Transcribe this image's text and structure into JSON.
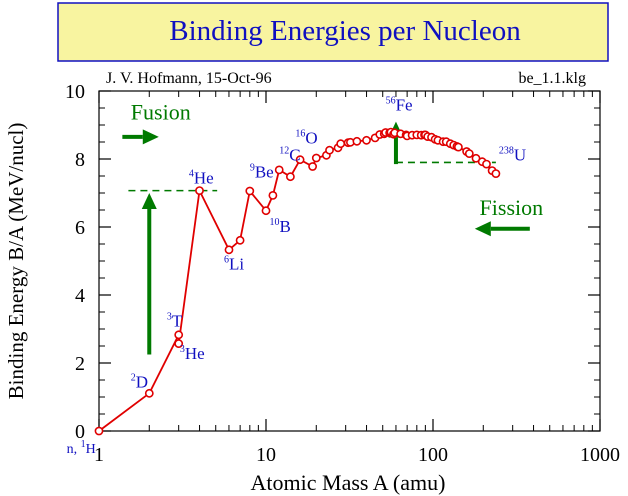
{
  "chart_data": {
    "type": "line",
    "title": "Binding Energies per Nucleon",
    "author_line": "J. V. Hofmann, 15-Oct-96",
    "file_label": "be_1.1.klg",
    "xlabel": "Atomic Mass A (amu)",
    "ylabel": "Binding Energy B/A (MeV/nucl)",
    "xscale": "log",
    "xlim": [
      1,
      1000
    ],
    "ylim": [
      0,
      10
    ],
    "x_ticks": [
      "1",
      "10",
      "100",
      "1000"
    ],
    "y_ticks": [
      "0",
      "2",
      "4",
      "6",
      "8",
      "10"
    ],
    "grid": false,
    "colors": {
      "title_box": "#f8f4a0",
      "title_text": "#1010c0",
      "series": "#e00000",
      "arrows": "#007a00",
      "labels": "#1010c0",
      "text": "#000000"
    },
    "series": [
      {
        "x": [
          1,
          2,
          3,
          3,
          4,
          6,
          7,
          8,
          10,
          11,
          12,
          14,
          16,
          19,
          20,
          23,
          24,
          27,
          28,
          31,
          32,
          35,
          40,
          45,
          48,
          51,
          52,
          55,
          56,
          58,
          59,
          64,
          69,
          70,
          75,
          80,
          85,
          89,
          90,
          93,
          98,
          103,
          107,
          115,
          120,
          127,
          133,
          139,
          142,
          159,
          165,
          181,
          197,
          209,
          226,
          238
        ],
        "values": [
          0.0,
          1.11,
          2.83,
          2.57,
          7.07,
          5.33,
          5.61,
          7.06,
          6.48,
          6.93,
          7.68,
          7.48,
          7.98,
          7.78,
          8.03,
          8.11,
          8.26,
          8.33,
          8.45,
          8.48,
          8.49,
          8.52,
          8.55,
          8.62,
          8.72,
          8.74,
          8.78,
          8.77,
          8.79,
          8.73,
          8.77,
          8.74,
          8.71,
          8.68,
          8.7,
          8.71,
          8.7,
          8.71,
          8.71,
          8.66,
          8.64,
          8.58,
          8.55,
          8.51,
          8.51,
          8.45,
          8.41,
          8.37,
          8.35,
          8.22,
          8.16,
          8.02,
          7.92,
          7.85,
          7.66,
          7.57
        ]
      }
    ],
    "nuclide_labels": [
      {
        "sup": "",
        "name": "n, ",
        "sup2": "1",
        "name2": "H"
      },
      {
        "sup": "2",
        "name": "D"
      },
      {
        "sup": "3",
        "name": "T"
      },
      {
        "sup": "3",
        "name": "He"
      },
      {
        "sup": "4",
        "name": "He"
      },
      {
        "sup": "6",
        "name": "Li"
      },
      {
        "sup": "9",
        "name": "Be"
      },
      {
        "sup": "10",
        "name": "B"
      },
      {
        "sup": "12",
        "name": "C"
      },
      {
        "sup": "16",
        "name": "O"
      },
      {
        "sup": "56",
        "name": "Fe"
      },
      {
        "sup": "238",
        "name": "U"
      }
    ],
    "annotations": {
      "fusion": "Fusion",
      "fission": "Fission"
    }
  }
}
